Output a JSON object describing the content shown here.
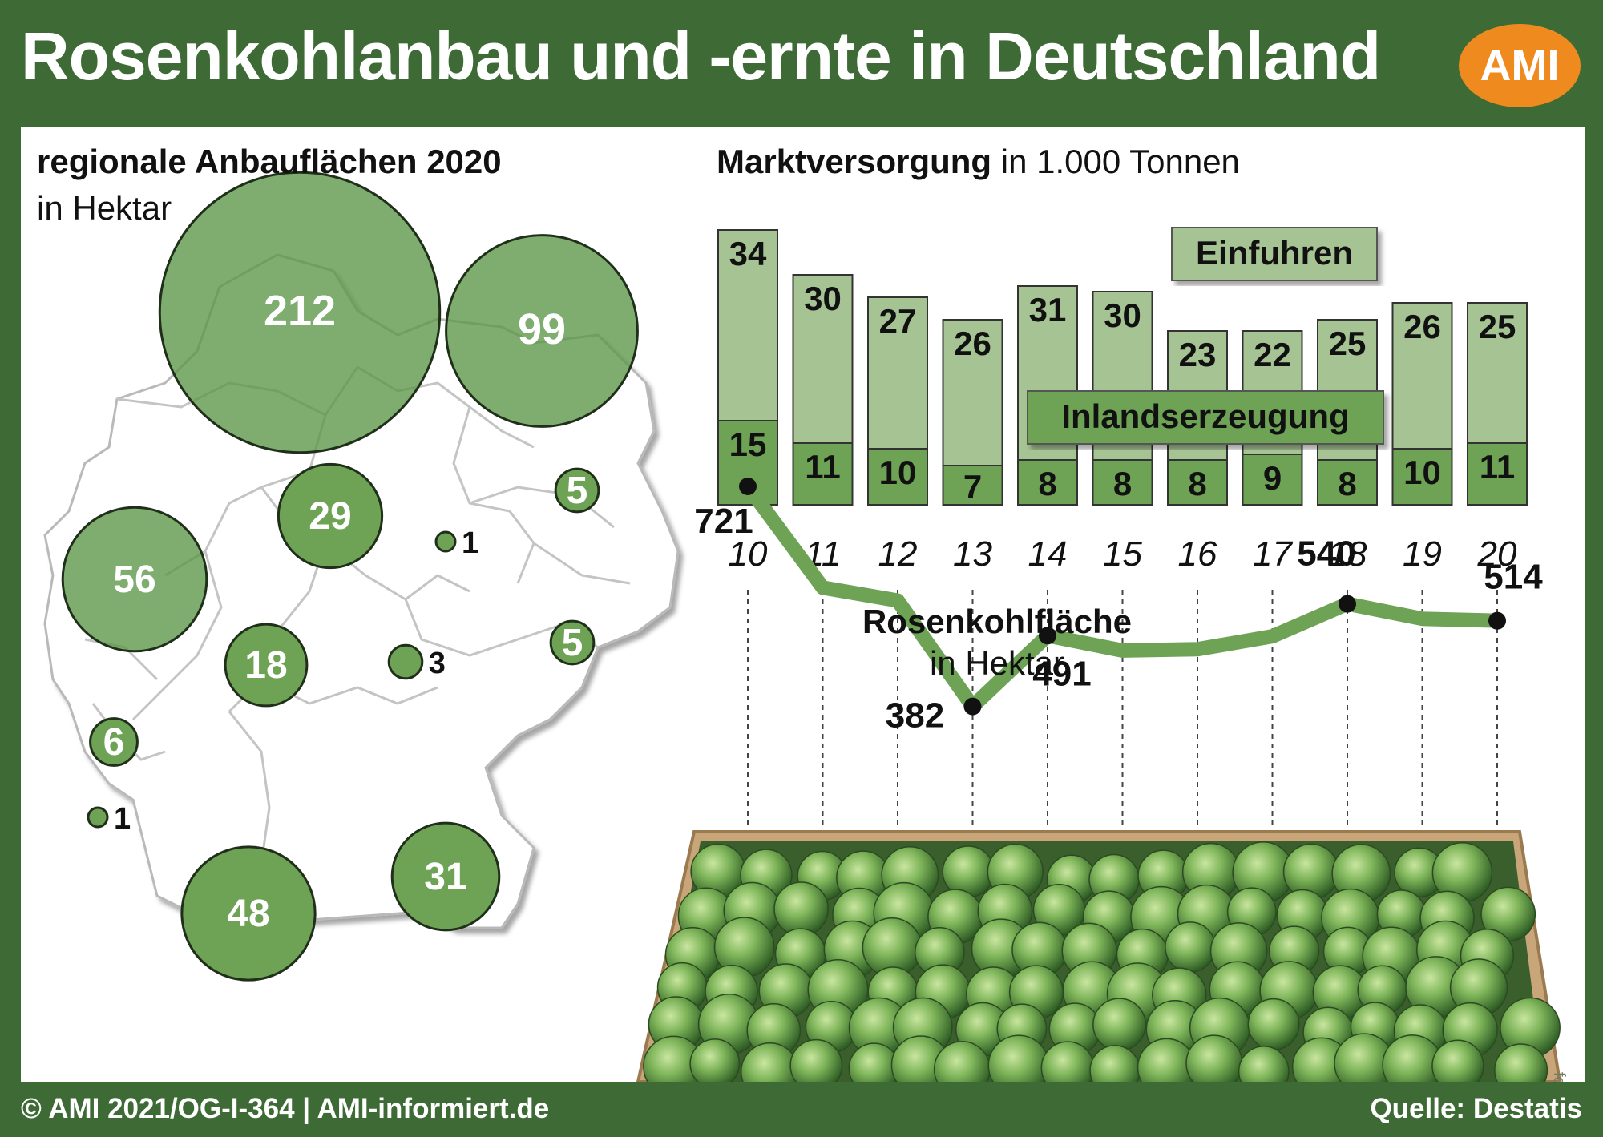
{
  "header": {
    "title": "Rosenkohlanbau und -ernte in Deutschland",
    "logo_text": "AMI"
  },
  "colors": {
    "frame_green": "#3e6b35",
    "bar_dark_green": "#6ea356",
    "bar_light_green": "#a6c493",
    "line_green": "#6ea356",
    "logo_orange": "#ef8a1f"
  },
  "map": {
    "title": "regionale Anbauflächen 2020",
    "unit": "in Hektar",
    "regions": [
      {
        "value": 212
      },
      {
        "value": 99
      },
      {
        "value": 56
      },
      {
        "value": 48
      },
      {
        "value": 31
      },
      {
        "value": 29
      },
      {
        "value": 18
      },
      {
        "value": 6
      },
      {
        "value": 5
      },
      {
        "value": 5
      },
      {
        "value": 3
      },
      {
        "value": 1
      },
      {
        "value": 1
      }
    ]
  },
  "supply": {
    "title_bold": "Marktversorgung",
    "title_rest": " in 1.000 Tonnen",
    "label_imports": "Einfuhren",
    "label_domestic": "Inlandserzeugung"
  },
  "area": {
    "title": "Rosenkohlfläche",
    "unit": "in Hektar"
  },
  "footer": {
    "left": "© AMI 2021/OG-I-364 | AMI-informiert.de",
    "right": "Quelle: Destatis"
  },
  "photo_credit": "fotolia-sisaszepe",
  "chart_data": [
    {
      "type": "bar",
      "title": "Marktversorgung in 1.000 Tonnen",
      "categories": [
        "10",
        "11",
        "12",
        "13",
        "14",
        "15",
        "16",
        "17",
        "18",
        "19",
        "20"
      ],
      "stacked": true,
      "series": [
        {
          "name": "Inlandserzeugung",
          "values": [
            15,
            11,
            10,
            7,
            8,
            8,
            8,
            9,
            8,
            10,
            11
          ]
        },
        {
          "name": "Einfuhren",
          "values": [
            34,
            30,
            27,
            26,
            31,
            30,
            23,
            22,
            25,
            26,
            25
          ]
        }
      ]
    },
    {
      "type": "line",
      "title": "Rosenkohlfläche in Hektar",
      "x": [
        "10",
        "11",
        "12",
        "13",
        "14",
        "15",
        "16",
        "17",
        "18",
        "19",
        "20"
      ],
      "y": [
        721,
        565,
        545,
        382,
        491,
        468,
        470,
        490,
        540,
        517,
        514
      ],
      "labeled_points": [
        {
          "x": "10",
          "y": 721
        },
        {
          "x": "13",
          "y": 382
        },
        {
          "x": "14",
          "y": 491
        },
        {
          "x": "18",
          "y": 540
        },
        {
          "x": "20",
          "y": 514
        }
      ]
    }
  ]
}
